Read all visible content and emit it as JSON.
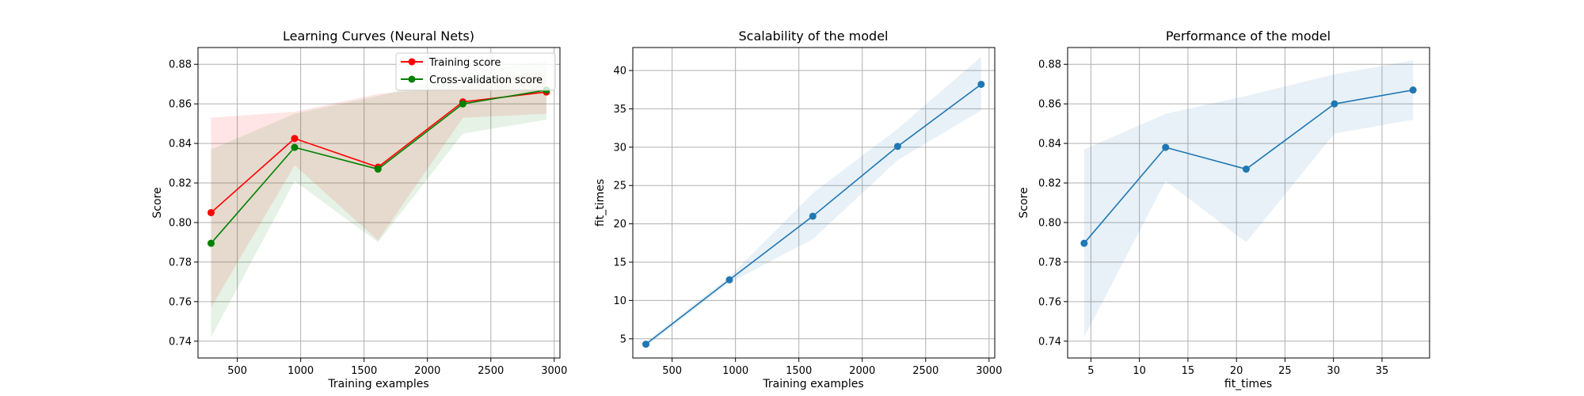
{
  "colors": {
    "training": "#ff0000",
    "cv": "#008000",
    "blue": "#1f77b4",
    "grid": "#b0b0b0",
    "axis": "#000000"
  },
  "chart_data": [
    {
      "type": "line",
      "title": "Learning Curves (Neural Nets)",
      "xlabel": "Training examples",
      "ylabel": "Score",
      "xlim": [
        190,
        3045
      ],
      "ylim": [
        0.7315,
        0.8885
      ],
      "xticks": [
        500,
        1000,
        1500,
        2000,
        2500,
        3000
      ],
      "xtick_labels": [
        "500",
        "1000",
        "1500",
        "2000",
        "2500",
        "3000"
      ],
      "yticks": [
        0.74,
        0.76,
        0.78,
        0.8,
        0.82,
        0.84,
        0.86,
        0.88
      ],
      "ytick_labels": [
        "0.74",
        "0.76",
        "0.78",
        "0.80",
        "0.82",
        "0.84",
        "0.86",
        "0.88"
      ],
      "grid": true,
      "legend": {
        "position": "top-right",
        "items": [
          "Training score",
          "Cross-validation score"
        ]
      },
      "x": [
        293,
        952,
        1610,
        2279,
        2938
      ],
      "series": [
        {
          "name": "Training score",
          "color": "#ff0000",
          "values": [
            0.805,
            0.8425,
            0.828,
            0.861,
            0.866
          ],
          "band_low": [
            0.757,
            0.829,
            0.791,
            0.853,
            0.855
          ],
          "band_high": [
            0.853,
            0.856,
            0.865,
            0.869,
            0.877
          ]
        },
        {
          "name": "Cross-validation score",
          "color": "#008000",
          "values": [
            0.7895,
            0.838,
            0.827,
            0.86,
            0.867
          ],
          "band_low": [
            0.742,
            0.821,
            0.79,
            0.845,
            0.852
          ],
          "band_high": [
            0.837,
            0.855,
            0.864,
            0.875,
            0.882
          ]
        }
      ]
    },
    {
      "type": "line",
      "title": "Scalability of the model",
      "xlabel": "Training examples",
      "ylabel": "fit_times",
      "xlim": [
        190,
        3045
      ],
      "ylim": [
        2.5,
        43.0
      ],
      "xticks": [
        500,
        1000,
        1500,
        2000,
        2500,
        3000
      ],
      "xtick_labels": [
        "500",
        "1000",
        "1500",
        "2000",
        "2500",
        "3000"
      ],
      "yticks": [
        5,
        10,
        15,
        20,
        25,
        30,
        35,
        40
      ],
      "ytick_labels": [
        "5",
        "10",
        "15",
        "20",
        "25",
        "30",
        "35",
        "40"
      ],
      "grid": true,
      "x": [
        293,
        952,
        1610,
        2279,
        2938
      ],
      "series": [
        {
          "color": "#1f77b4",
          "values": [
            4.3,
            12.7,
            21.0,
            30.1,
            38.2
          ],
          "band_low": [
            4.0,
            12.3,
            18.0,
            28.3,
            34.8
          ],
          "band_high": [
            4.6,
            13.1,
            24.0,
            32.4,
            41.8
          ]
        }
      ]
    },
    {
      "type": "line",
      "title": "Performance of the model",
      "xlabel": "fit_times",
      "ylabel": "Score",
      "xlim": [
        2.6,
        39.9
      ],
      "ylim": [
        0.7315,
        0.8885
      ],
      "xticks": [
        5,
        10,
        15,
        20,
        25,
        30,
        35
      ],
      "xtick_labels": [
        "5",
        "10",
        "15",
        "20",
        "25",
        "30",
        "35"
      ],
      "yticks": [
        0.74,
        0.76,
        0.78,
        0.8,
        0.82,
        0.84,
        0.86,
        0.88
      ],
      "ytick_labels": [
        "0.74",
        "0.76",
        "0.78",
        "0.80",
        "0.82",
        "0.84",
        "0.86",
        "0.88"
      ],
      "grid": true,
      "x": [
        4.3,
        12.7,
        21.0,
        30.1,
        38.2
      ],
      "series": [
        {
          "color": "#1f77b4",
          "values": [
            0.7895,
            0.838,
            0.827,
            0.86,
            0.867
          ],
          "band_low": [
            0.742,
            0.821,
            0.79,
            0.845,
            0.852
          ],
          "band_high": [
            0.837,
            0.855,
            0.864,
            0.875,
            0.882
          ]
        }
      ]
    }
  ]
}
